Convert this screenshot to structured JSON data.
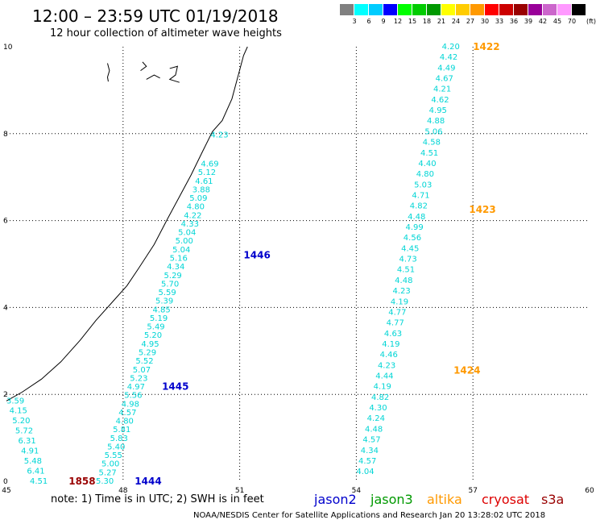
{
  "header": {
    "title": "12:00 – 23:59 UTC 01/19/2018",
    "subtitle": "12 hour collection of altimeter wave heights"
  },
  "color_scale": {
    "unit": "(ft)",
    "colors": [
      "#808080",
      "#00ffff",
      "#00ccff",
      "#0000ff",
      "#00ff00",
      "#00cc00",
      "#009900",
      "#ffff00",
      "#ffcc00",
      "#ff9900",
      "#ff0000",
      "#cc0000",
      "#990000",
      "#990099",
      "#cc66cc",
      "#ff99ff",
      "#000000"
    ],
    "ticks": [
      "3",
      "6",
      "9",
      "12",
      "15",
      "18",
      "21",
      "24",
      "27",
      "30",
      "33",
      "36",
      "39",
      "42",
      "45",
      "70"
    ]
  },
  "axes": {
    "x_ticks": [
      45,
      48,
      51,
      54,
      57,
      60
    ],
    "y_ticks": [
      0,
      2,
      4,
      6,
      8,
      10
    ],
    "x_range": [
      45,
      60
    ],
    "y_range": [
      0,
      10
    ],
    "grid": true
  },
  "tracks": [
    {
      "color": "#00d5d5",
      "values": [
        "4.51",
        "6.41",
        "5.48",
        "4.91",
        "6.31",
        "5.72",
        "5.20",
        "4.15",
        "3.59"
      ],
      "start": [
        45.6,
        0.0
      ],
      "end": [
        45.0,
        1.85
      ]
    },
    {
      "color": "#00d5d5",
      "values": [
        "5.30",
        "5.27",
        "5.00",
        "5.55",
        "5.40",
        "5.83",
        "5.81",
        "4.80",
        "4.57",
        "4.98",
        "5.56",
        "4.97",
        "5.23",
        "5.07",
        "5.52",
        "5.29",
        "4.95",
        "5.20",
        "5.49",
        "5.19",
        "4.85",
        "5.39",
        "5.59",
        "5.70",
        "5.29",
        "4.34",
        "5.16",
        "5.04",
        "5.00",
        "5.04",
        "4.33",
        "4.22",
        "4.80",
        "5.09",
        "3.88",
        "4.61",
        "5.12",
        "4.69"
      ],
      "start": [
        47.3,
        0.0
      ],
      "end": [
        50.0,
        7.3
      ]
    },
    {
      "color": "#00d5d5",
      "values": [
        "4.23"
      ],
      "start": [
        50.25,
        7.97
      ],
      "end": [
        50.25,
        7.97
      ]
    },
    {
      "color": "#00d5d5",
      "values": [
        "4.04",
        "4.57",
        "4.34",
        "4.57",
        "4.48",
        "4.24",
        "4.30",
        "4.82",
        "4.19",
        "4.44",
        "4.23",
        "4.46",
        "4.19",
        "4.63",
        "4.77",
        "4.77",
        "4.19",
        "4.23",
        "4.48",
        "4.51",
        "4.73",
        "4.45",
        "4.56",
        "4.99",
        "4.48",
        "4.82",
        "4.71",
        "5.03",
        "4.80",
        "4.40",
        "4.51",
        "4.58",
        "5.06",
        "4.88",
        "4.95",
        "4.62",
        "4.21",
        "4.67",
        "4.49",
        "4.42",
        "4.20"
      ],
      "start": [
        54.0,
        0.22
      ],
      "end": [
        56.2,
        10.0
      ]
    }
  ],
  "time_labels": [
    {
      "text": "1422",
      "color": "#ff9900",
      "x": 57.0,
      "y": 10.0
    },
    {
      "text": "1423",
      "color": "#ff9900",
      "x": 56.9,
      "y": 6.25
    },
    {
      "text": "1424",
      "color": "#ff9900",
      "x": 56.5,
      "y": 2.55
    },
    {
      "text": "1446",
      "color": "#0000cc",
      "x": 51.1,
      "y": 5.2
    },
    {
      "text": "1445",
      "color": "#0000cc",
      "x": 49.0,
      "y": 2.18
    },
    {
      "text": "1444",
      "color": "#0000cc",
      "x": 48.3,
      "y": 0.0
    },
    {
      "text": "1858",
      "color": "#990000",
      "x": 46.6,
      "y": 0.0
    }
  ],
  "note": "note:  1) Time is in UTC;  2) SWH is in feet",
  "satellites": [
    {
      "name": "jason2",
      "color": "#0000cc"
    },
    {
      "name": "jason3",
      "color": "#009900"
    },
    {
      "name": "altika",
      "color": "#ff9900"
    },
    {
      "name": "cryosat",
      "color": "#dd0000"
    },
    {
      "name": "s3a",
      "color": "#990000"
    }
  ],
  "credit": "NOAA/NESDIS Center for Satellite Applications and Research    Jan 20 13:28:02 UTC 2018"
}
